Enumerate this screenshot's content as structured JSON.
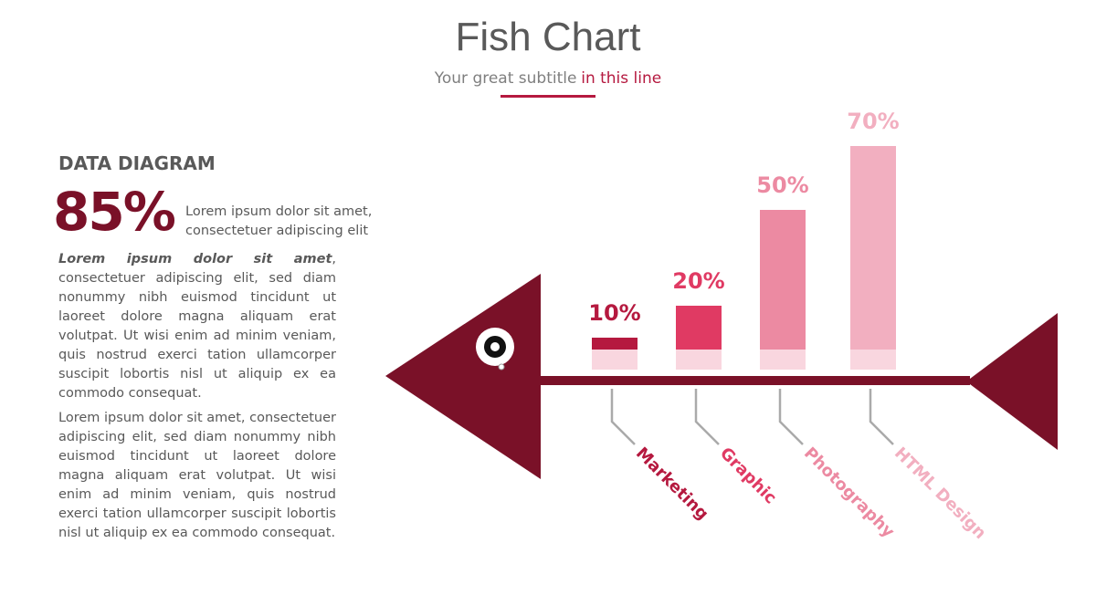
{
  "header": {
    "title": "Fish Chart",
    "subtitle": "Your great subtitle",
    "subtitle_highlight": "in this line"
  },
  "sidebar": {
    "heading": "DATA DIAGRAM",
    "stat": "85%",
    "stat_text": "Lorem ipsum dolor sit amet, consectetuer adipiscing elit",
    "paragraphs": [
      {
        "lead": "Lorem ipsum dolor sit amet",
        "text": ", consectetuer adipiscing elit, sed diam nonummy nibh euismod tincidunt ut laoreet dolore magna aliquam erat volutpat. Ut wisi enim ad minim veniam, quis nostrud exerci tation ullamcorper suscipit lobortis nisl ut aliquip ex ea commodo consequat."
      },
      {
        "text": "Lorem ipsum dolor sit amet, consectetuer adipiscing elit, sed diam nonummy nibh euismod tincidunt ut laoreet dolore magna aliquam erat volutpat. Ut wisi enim ad minim veniam, quis nostrud exerci tation ullamcorper suscipit lobortis nisl ut aliquip ex ea commodo consequat."
      }
    ]
  },
  "chart_data": {
    "type": "bar",
    "categories": [
      "Marketing",
      "Graphic",
      "Photography",
      "HTML Design"
    ],
    "values": [
      10,
      20,
      50,
      70
    ],
    "value_labels": [
      "10%",
      "20%",
      "50%",
      "70%"
    ],
    "colors": [
      "#b5193f",
      "#e03a63",
      "#ec8aa2",
      "#f2afc0"
    ]
  }
}
